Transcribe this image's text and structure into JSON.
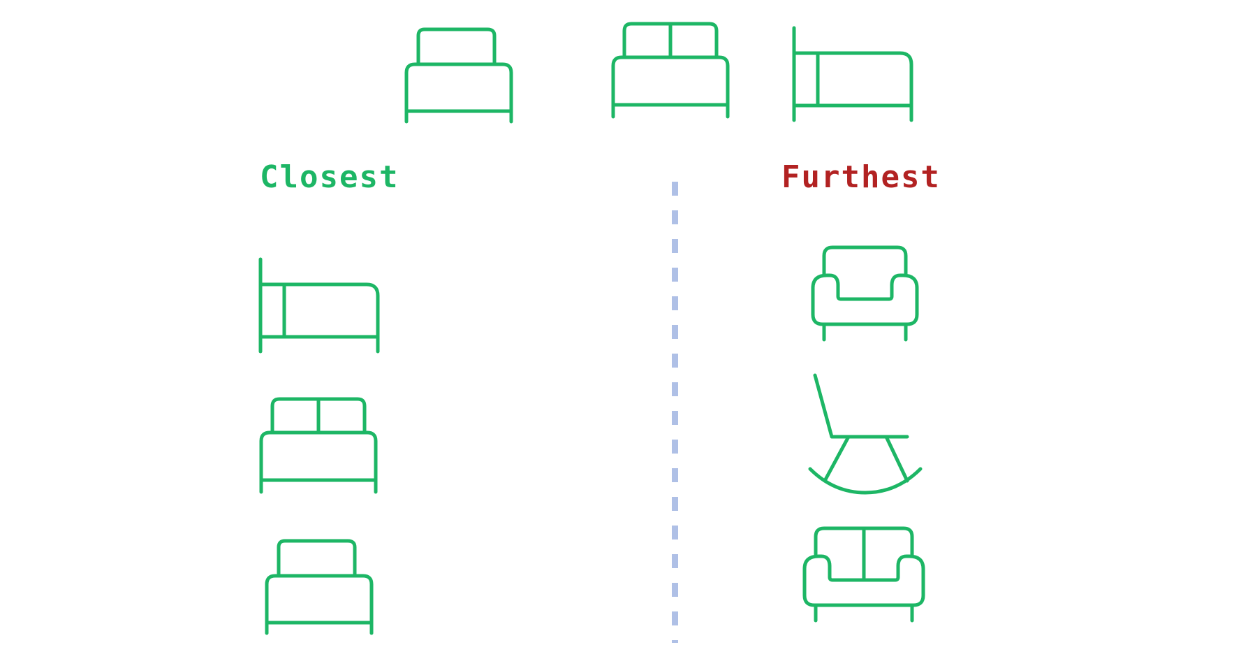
{
  "labels": {
    "closest": "Closest",
    "furthest": "Furthest"
  },
  "colors": {
    "icon_stroke": "#1DB665",
    "closest_text": "#1DB665",
    "furthest_text": "#B22222",
    "divider": "#AFC0E6"
  },
  "query_icons": [
    "single-bed-icon",
    "double-bed-icon",
    "side-bed-icon"
  ],
  "closest_icons": [
    "side-bed-icon",
    "double-bed-icon",
    "single-bed-icon"
  ],
  "furthest_icons": [
    "armchair-icon",
    "rocking-chair-icon",
    "loveseat-icon"
  ]
}
